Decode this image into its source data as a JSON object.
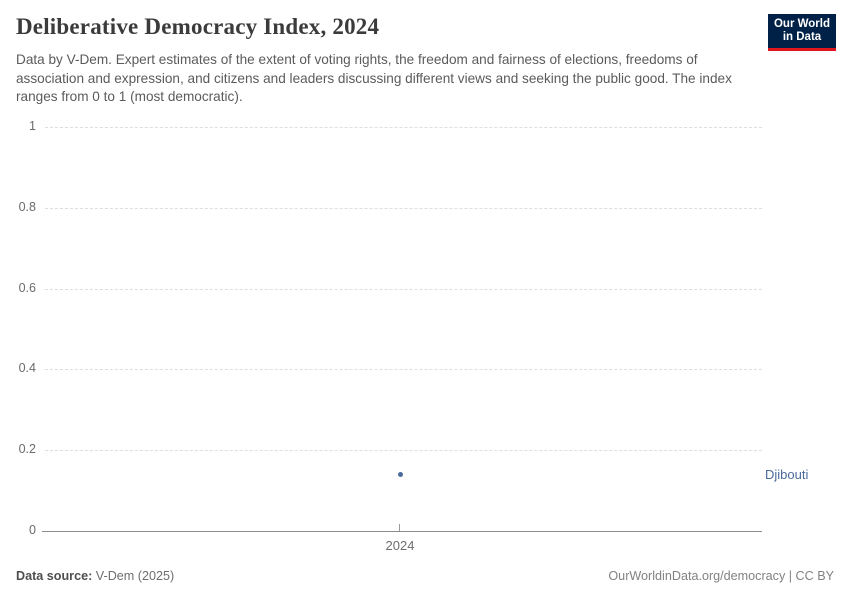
{
  "header": {
    "title": "Deliberative Democracy Index, 2024",
    "subtitle": "Data by V-Dem. Expert estimates of the extent of voting rights, the freedom and fairness of elections, freedoms of association and expression, and citizens and leaders discussing different views and seeking the public good. The index ranges from 0 to 1 (most democratic).",
    "logo": {
      "line1": "Our World",
      "line2": "in Data",
      "bg_color": "#002147",
      "accent_color": "#e0161f"
    }
  },
  "chart_data": {
    "type": "line",
    "title": "Deliberative Democracy Index, 2024",
    "x": [
      2024
    ],
    "series": [
      {
        "name": "Djibouti",
        "values": [
          0.14
        ],
        "color": "#4C6A9C"
      }
    ],
    "xlabel": "",
    "ylabel": "",
    "ylim": [
      0,
      1
    ],
    "ytick_values": [
      0,
      0.2,
      0.4,
      0.6,
      0.8,
      1
    ],
    "yticks": [
      "0",
      "0.2",
      "0.4",
      "0.6",
      "0.8",
      "1"
    ],
    "xticks": [
      "2024"
    ],
    "grid": "horizontal-dashed",
    "legend_position": "right-of-plot"
  },
  "footer": {
    "source_label": "Data source:",
    "source_value": " V-Dem (2025)",
    "credit": "OurWorldinData.org/democracy | CC BY"
  }
}
